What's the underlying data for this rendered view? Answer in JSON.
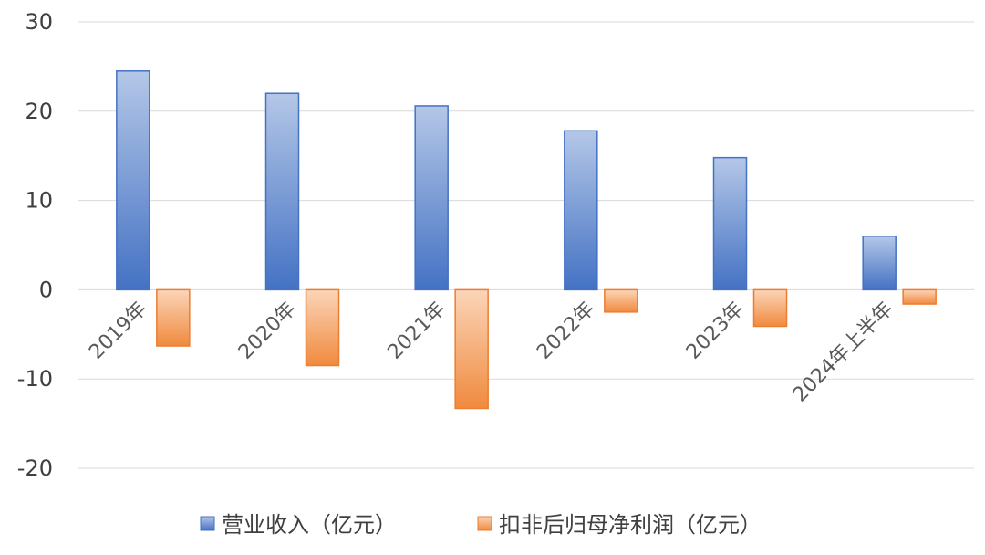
{
  "chart_data": {
    "type": "bar",
    "categories": [
      "2019年",
      "2020年",
      "2021年",
      "2022年",
      "2023年",
      "2024年上半年"
    ],
    "series": [
      {
        "name": "营业收入（亿元）",
        "values": [
          24.5,
          22.0,
          20.6,
          17.8,
          14.8,
          6.0
        ],
        "color": "#4472c4"
      },
      {
        "name": "扣非后归母净利润（亿元）",
        "values": [
          -6.3,
          -8.5,
          -13.3,
          -2.5,
          -4.1,
          -1.6
        ],
        "color": "#ed7d31"
      }
    ],
    "title": "",
    "xlabel": "",
    "ylabel": "",
    "ylim": [
      -20,
      30
    ],
    "yticks": [
      "30",
      "20",
      "10",
      "0",
      "-10",
      "-20"
    ],
    "grid": true,
    "legend_position": "bottom"
  }
}
